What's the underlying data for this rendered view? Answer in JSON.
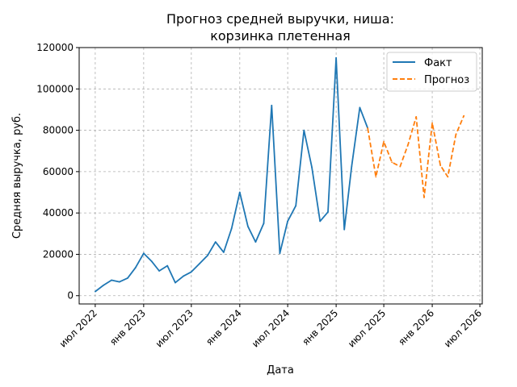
{
  "chart_data": {
    "type": "line",
    "title_line1": "Прогноз средней выручки, ниша:",
    "title_line2": "корзинка плетенная",
    "xlabel": "Дата",
    "ylabel": "Средняя выручка, руб.",
    "ylim": [
      -4000,
      120000
    ],
    "yticks": [
      0,
      20000,
      40000,
      60000,
      80000,
      100000,
      120000
    ],
    "ytick_labels": [
      "0",
      "20000",
      "40000",
      "60000",
      "80000",
      "100000",
      "120000"
    ],
    "xlim": [
      "2022-05-01",
      "2026-07-10"
    ],
    "xticks": [
      "2022-07-01",
      "2023-01-01",
      "2023-07-01",
      "2024-01-01",
      "2024-07-01",
      "2025-01-01",
      "2025-07-01",
      "2026-01-01",
      "2026-07-01"
    ],
    "xtick_labels": [
      "июл 2022",
      "янв 2023",
      "июл 2023",
      "янв 2024",
      "июл 2024",
      "янв 2025",
      "июл 2025",
      "янв 2026",
      "июл 2026"
    ],
    "grid": true,
    "legend_position": "top-right",
    "series": [
      {
        "name": "Факт",
        "color": "#1f77b4",
        "dash": "solid",
        "points": [
          [
            "2022-07-01",
            2000
          ],
          [
            "2022-08-01",
            5000
          ],
          [
            "2022-09-01",
            7500
          ],
          [
            "2022-10-01",
            6700
          ],
          [
            "2022-11-01",
            8500
          ],
          [
            "2022-12-01",
            13500
          ],
          [
            "2023-01-01",
            20500
          ],
          [
            "2023-02-01",
            16500
          ],
          [
            "2023-03-01",
            12000
          ],
          [
            "2023-04-01",
            14500
          ],
          [
            "2023-05-01",
            6300
          ],
          [
            "2023-06-01",
            9500
          ],
          [
            "2023-07-01",
            11500
          ],
          [
            "2023-08-01",
            15500
          ],
          [
            "2023-09-01",
            19500
          ],
          [
            "2023-10-01",
            26000
          ],
          [
            "2023-11-01",
            21000
          ],
          [
            "2023-12-01",
            32500
          ],
          [
            "2024-01-01",
            50000
          ],
          [
            "2024-02-01",
            33500
          ],
          [
            "2024-03-01",
            26000
          ],
          [
            "2024-04-01",
            35000
          ],
          [
            "2024-05-01",
            92000
          ],
          [
            "2024-06-01",
            20500
          ],
          [
            "2024-07-01",
            36000
          ],
          [
            "2024-08-01",
            43500
          ],
          [
            "2024-09-01",
            80000
          ],
          [
            "2024-10-01",
            62000
          ],
          [
            "2024-11-01",
            36000
          ],
          [
            "2024-12-01",
            40500
          ],
          [
            "2025-01-01",
            115000
          ],
          [
            "2025-02-01",
            32000
          ],
          [
            "2025-03-01",
            62500
          ],
          [
            "2025-04-01",
            91000
          ],
          [
            "2025-05-01",
            81000
          ]
        ]
      },
      {
        "name": "Прогноз",
        "color": "#ff7f0e",
        "dash": "dashed",
        "points": [
          [
            "2025-05-01",
            81000
          ],
          [
            "2025-06-01",
            57500
          ],
          [
            "2025-07-01",
            74500
          ],
          [
            "2025-08-01",
            64500
          ],
          [
            "2025-09-01",
            62500
          ],
          [
            "2025-10-01",
            73000
          ],
          [
            "2025-11-01",
            86500
          ],
          [
            "2025-12-01",
            47500
          ],
          [
            "2026-01-01",
            83500
          ],
          [
            "2026-02-01",
            63000
          ],
          [
            "2026-03-01",
            57500
          ],
          [
            "2026-04-01",
            78000
          ],
          [
            "2026-05-01",
            87000
          ]
        ]
      }
    ]
  }
}
